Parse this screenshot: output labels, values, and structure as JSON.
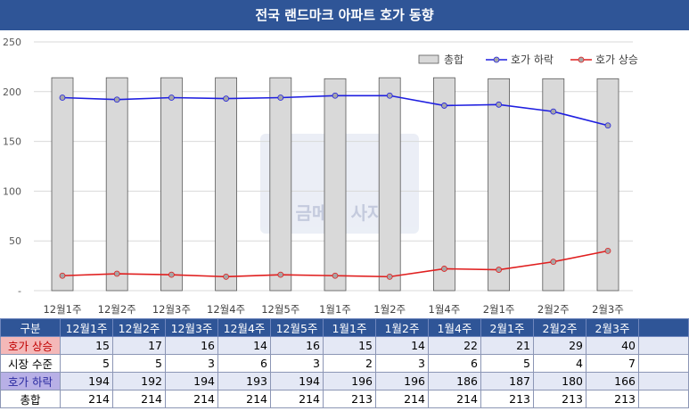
{
  "title": "전국 랜드마크 아파트 호가 동향",
  "chart_data": {
    "type": "bar",
    "categories": [
      "12월1주",
      "12월2주",
      "12월3주",
      "12월4주",
      "12월5주",
      "1월1주",
      "1월2주",
      "1월4주",
      "2월1주",
      "2월2주",
      "2월3주"
    ],
    "ylim": [
      0,
      250
    ],
    "yticks": [
      "-",
      "50",
      "100",
      "150",
      "200",
      "250"
    ],
    "legend_position": "top-right",
    "series": [
      {
        "name": "총합",
        "type": "bar",
        "values": [
          214,
          214,
          214,
          214,
          214,
          213,
          214,
          214,
          213,
          213,
          213
        ]
      },
      {
        "name": "호가 하락",
        "type": "line",
        "values": [
          194,
          192,
          194,
          193,
          194,
          196,
          196,
          186,
          187,
          180,
          166
        ]
      },
      {
        "name": "호가 상승",
        "type": "line",
        "values": [
          15,
          17,
          16,
          14,
          16,
          15,
          14,
          22,
          21,
          29,
          40
        ]
      }
    ]
  },
  "colors": {
    "bar_fill": "#d9d9d9",
    "bar_stroke": "#595959",
    "down": "#1f1fe0",
    "up": "#e01f1f",
    "header": "#2f5597"
  },
  "table": {
    "header": [
      "구분",
      "12월1주",
      "12월2주",
      "12월3주",
      "12월4주",
      "12월5주",
      "1월1주",
      "1월2주",
      "1월4주",
      "2월1주",
      "2월2주",
      "2월3주",
      ""
    ],
    "rows": [
      {
        "label": "호가 상승",
        "values": [
          "15",
          "17",
          "16",
          "14",
          "16",
          "15",
          "14",
          "22",
          "21",
          "29",
          "40"
        ]
      },
      {
        "label": "시장 수준",
        "values": [
          "5",
          "5",
          "3",
          "6",
          "3",
          "2",
          "3",
          "6",
          "5",
          "4",
          "7"
        ]
      },
      {
        "label": "호가 하락",
        "values": [
          "194",
          "192",
          "194",
          "193",
          "194",
          "196",
          "196",
          "186",
          "187",
          "180",
          "166"
        ]
      },
      {
        "label": "총합",
        "values": [
          "214",
          "214",
          "214",
          "214",
          "214",
          "213",
          "214",
          "214",
          "213",
          "213",
          "213"
        ]
      }
    ]
  }
}
